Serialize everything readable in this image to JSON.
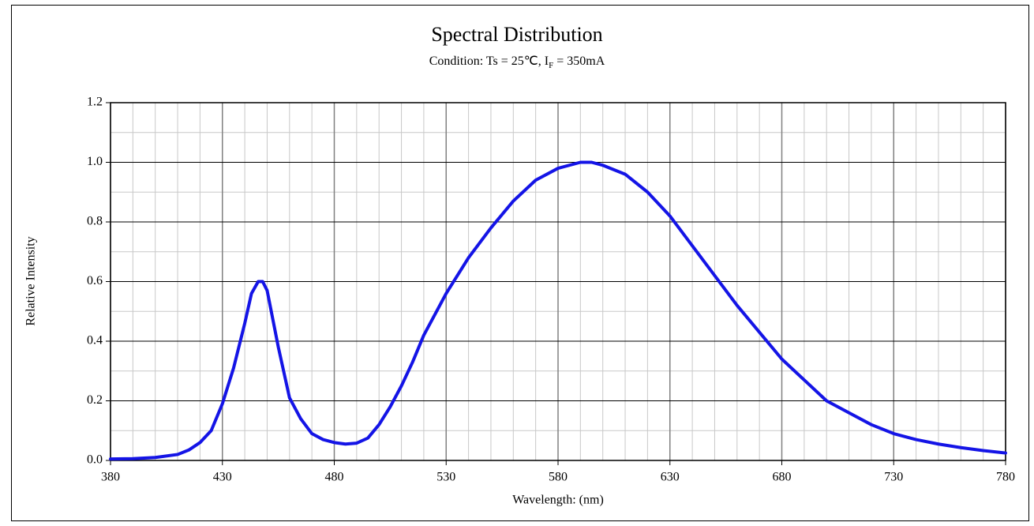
{
  "chart_data": {
    "type": "line",
    "title": "Spectral Distribution",
    "subtitle": [
      "Condition: Ts = 25℃, I",
      "F",
      " = 350mA"
    ],
    "x_label": "Wavelength: (nm)",
    "y_label": "Relative Intensity",
    "x": [
      380,
      390,
      400,
      410,
      415,
      420,
      425,
      430,
      435,
      440,
      443,
      446,
      448,
      450,
      455,
      460,
      465,
      470,
      475,
      480,
      485,
      490,
      495,
      500,
      505,
      510,
      515,
      520,
      525,
      530,
      540,
      550,
      560,
      570,
      580,
      590,
      595,
      600,
      610,
      620,
      630,
      640,
      650,
      660,
      670,
      680,
      690,
      700,
      710,
      720,
      730,
      740,
      750,
      760,
      770,
      780
    ],
    "series": [
      {
        "name": "Relative Intensity",
        "color": "#1414e6",
        "values": [
          0.005,
          0.006,
          0.01,
          0.02,
          0.035,
          0.06,
          0.1,
          0.19,
          0.31,
          0.46,
          0.56,
          0.6,
          0.6,
          0.57,
          0.38,
          0.21,
          0.14,
          0.09,
          0.07,
          0.06,
          0.055,
          0.058,
          0.075,
          0.12,
          0.18,
          0.25,
          0.33,
          0.42,
          0.49,
          0.56,
          0.68,
          0.78,
          0.87,
          0.94,
          0.98,
          1.0,
          1.0,
          0.99,
          0.96,
          0.9,
          0.82,
          0.72,
          0.62,
          0.52,
          0.43,
          0.34,
          0.27,
          0.2,
          0.16,
          0.12,
          0.09,
          0.07,
          0.055,
          0.043,
          0.033,
          0.025
        ]
      }
    ],
    "xlim": [
      380,
      780
    ],
    "xticks": [
      380,
      430,
      480,
      530,
      580,
      630,
      680,
      730,
      780
    ],
    "xminorticks": [
      390,
      400,
      410,
      420,
      440,
      450,
      460,
      470,
      490,
      500,
      510,
      520,
      540,
      550,
      560,
      570,
      590,
      600,
      610,
      620,
      640,
      650,
      660,
      670,
      690,
      700,
      710,
      720,
      740,
      750,
      760,
      770
    ],
    "ylim": [
      0,
      1.2
    ],
    "yticks": [
      {
        "value": 0,
        "label": "0.0"
      },
      {
        "value": 0.2,
        "label": "0.2"
      },
      {
        "value": 0.4,
        "label": "0.4"
      },
      {
        "value": 0.6,
        "label": "0.6"
      },
      {
        "value": 0.8,
        "label": "0.8"
      },
      {
        "value": 1,
        "label": "1.0"
      },
      {
        "value": 1.2,
        "label": "1.2"
      }
    ],
    "yminorticks": [
      0.1,
      0.3,
      0.5,
      0.7,
      0.9,
      1.1
    ],
    "grid": true
  }
}
